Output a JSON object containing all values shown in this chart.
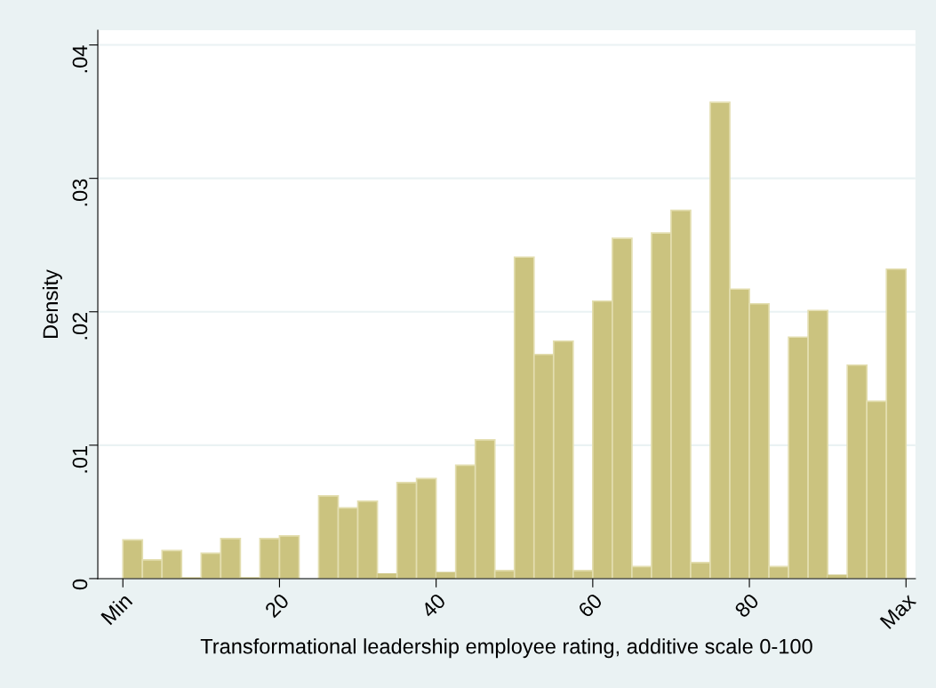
{
  "chart_data": {
    "type": "histogram",
    "xlabel": "Transformational leadership employee rating, additive scale 0-100",
    "ylabel": "Density",
    "bins": [
      0,
      2.5,
      5,
      7.5,
      10,
      12.5,
      15,
      17.5,
      20,
      22.5,
      25,
      27.5,
      30,
      32.5,
      35,
      37.5,
      40,
      42.5,
      45,
      47.5,
      50,
      52.5,
      55,
      57.5,
      60,
      62.5,
      65,
      67.5,
      70,
      72.5,
      75,
      77.5,
      80,
      82.5,
      85,
      87.5,
      90,
      92.5,
      95,
      97.5,
      100
    ],
    "values": [
      0.0029,
      0.0014,
      0.0021,
      0.0001,
      0.0019,
      0.003,
      0.0001,
      0.003,
      0.0032,
      0,
      0.0062,
      0.0053,
      0.0058,
      0.0004,
      0.0072,
      0.0075,
      0.0005,
      0.0085,
      0.0104,
      0.0006,
      0.0241,
      0.0168,
      0.0178,
      0.0006,
      0.0208,
      0.0255,
      0.0009,
      0.0259,
      0.0276,
      0.0012,
      0.0357,
      0.0217,
      0.0206,
      0.0009,
      0.0181,
      0.0201,
      0.0003,
      0.016,
      0.0133,
      0.0232
    ],
    "color": "#cbc37f",
    "xlim": [
      -3.2,
      101.2
    ],
    "xticks": [
      {
        "value": 0,
        "label": "Min"
      },
      20,
      40,
      60,
      80,
      {
        "value": 100,
        "label": "Max"
      }
    ],
    "ylim": [
      0,
      0.0411
    ],
    "yticks": [
      0,
      {
        "value": 0.01,
        "label": ".01"
      },
      {
        "value": 0.02,
        "label": ".02"
      },
      {
        "value": 0.03,
        "label": ".03"
      },
      {
        "value": 0.04,
        "label": ".04"
      }
    ],
    "grid": "y"
  }
}
